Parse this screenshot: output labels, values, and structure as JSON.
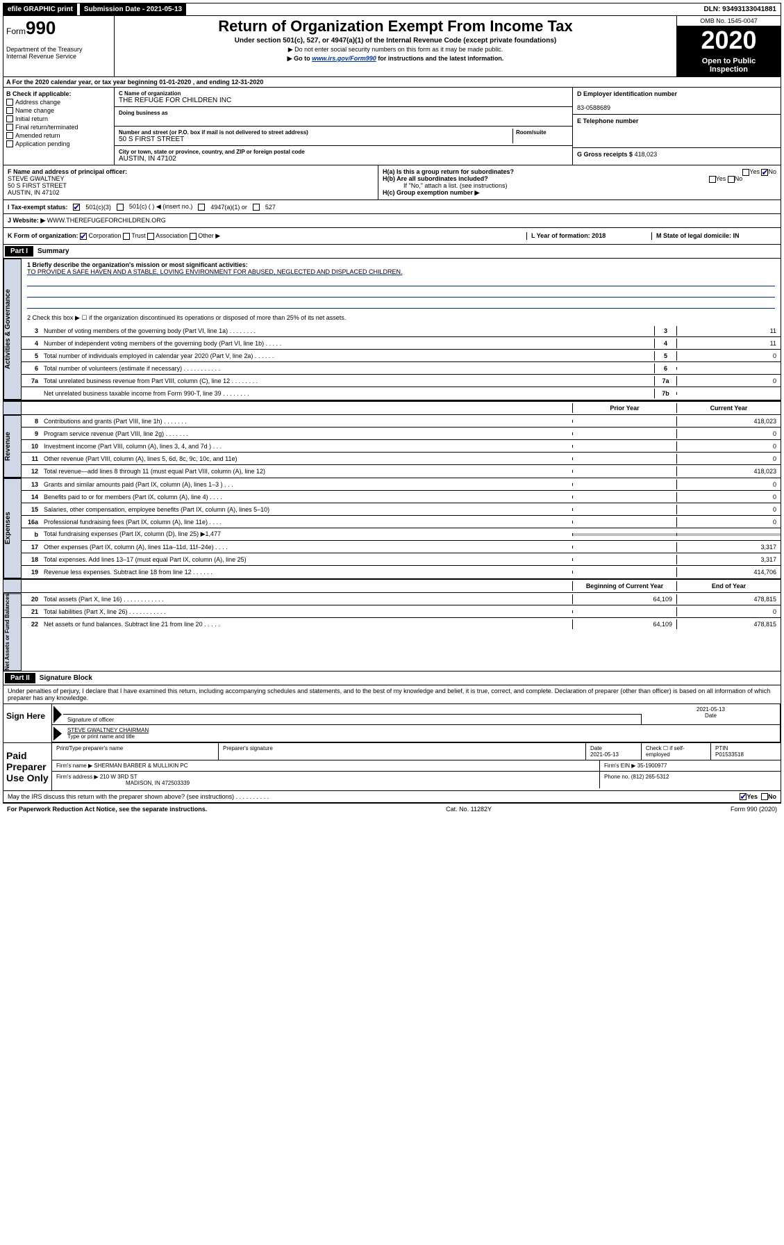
{
  "topbar": {
    "efile": "efile GRAPHIC print",
    "submission_label": "Submission Date - 2021-05-13",
    "dln": "DLN: 93493133041881"
  },
  "header": {
    "form_label": "Form",
    "form_number": "990",
    "dept": "Department of the Treasury\nInternal Revenue Service",
    "title": "Return of Organization Exempt From Income Tax",
    "subtitle": "Under section 501(c), 527, or 4947(a)(1) of the Internal Revenue Code (except private foundations)",
    "instr1": "▶ Do not enter social security numbers on this form as it may be made public.",
    "instr2_pre": "▶ Go to ",
    "instr2_link": "www.irs.gov/Form990",
    "instr2_post": " for instructions and the latest information.",
    "omb": "OMB No. 1545-0047",
    "year": "2020",
    "open": "Open to Public\nInspection"
  },
  "row_a": "A For the 2020 calendar year, or tax year beginning 01-01-2020    , and ending 12-31-2020",
  "box_b": {
    "label": "B Check if applicable:",
    "items": [
      "Address change",
      "Name change",
      "Initial return",
      "Final return/terminated",
      "Amended return",
      "Application pending"
    ]
  },
  "box_c": {
    "name_label": "C Name of organization",
    "name": "THE REFUGE FOR CHILDREN INC",
    "dba_label": "Doing business as",
    "addr_label": "Number and street (or P.O. box if mail is not delivered to street address)",
    "room_label": "Room/suite",
    "addr": "50 S FIRST STREET",
    "city_label": "City or town, state or province, country, and ZIP or foreign postal code",
    "city": "AUSTIN, IN  47102"
  },
  "box_d": {
    "label": "D Employer identification number",
    "val": "83-0588689"
  },
  "box_e": {
    "label": "E Telephone number",
    "val": ""
  },
  "box_g": {
    "label": "G Gross receipts $",
    "val": "418,023"
  },
  "box_f": {
    "label": "F  Name and address of principal officer:",
    "name": "STEVE GWALTNEY",
    "addr1": "50 S FIRST STREET",
    "addr2": "AUSTIN, IN  47102"
  },
  "box_h": {
    "ha": "H(a)  Is this a group return for subordinates?",
    "hb": "H(b)  Are all subordinates included?",
    "hb_note": "If \"No,\" attach a list. (see instructions)",
    "hc": "H(c)  Group exemption number ▶",
    "yes": "Yes",
    "no": "No"
  },
  "row_i": {
    "label": "I    Tax-exempt status:",
    "o1": "501(c)(3)",
    "o2": "501(c) (   ) ◀ (insert no.)",
    "o3": "4947(a)(1) or",
    "o4": "527"
  },
  "row_j": {
    "label": "J    Website: ▶  ",
    "val": "WWW.THEREFUGEFORCHILDREN.ORG"
  },
  "row_k": {
    "k": "K Form of organization:",
    "k1": "Corporation",
    "k2": "Trust",
    "k3": "Association",
    "k4": "Other ▶",
    "l": "L Year of formation: 2018",
    "m": "M State of legal domicile: IN"
  },
  "part1": {
    "hdr": "Part I",
    "title": "Summary"
  },
  "summary": {
    "q1": "1  Briefly describe the organization's mission or most significant activities:",
    "mission": "TO PROVIDE A SAFE HAVEN AND A STABLE, LOVING ENVIRONMENT FOR ABUSED, NEGLECTED AND DISPLACED CHILDREN.",
    "q2": "2   Check this box ▶ ☐  if the organization discontinued its operations or disposed of more than 25% of its net assets.",
    "lines": [
      {
        "n": "3",
        "d": "Number of voting members of the governing body (Part VI, line 1a)   .    .    .    .    .    .    .    .",
        "box": "3",
        "v": "11"
      },
      {
        "n": "4",
        "d": "Number of independent voting members of the governing body (Part VI, line 1b)  .    .    .    .    .",
        "box": "4",
        "v": "11"
      },
      {
        "n": "5",
        "d": "Total number of individuals employed in calendar year 2020 (Part V, line 2a)  .    .    .    .    .    .",
        "box": "5",
        "v": "0"
      },
      {
        "n": "6",
        "d": "Total number of volunteers (estimate if necessary)   .    .    .    .    .    .    .    .    .    .    .",
        "box": "6",
        "v": ""
      },
      {
        "n": "7a",
        "d": "Total unrelated business revenue from Part VIII, column (C), line 12  .    .    .    .    .    .    .    .",
        "box": "7a",
        "v": "0"
      },
      {
        "n": "",
        "d": "Net unrelated business taxable income from Form 990-T, line 39   .    .    .    .    .    .    .    .",
        "box": "7b",
        "v": ""
      }
    ]
  },
  "fin_hdr": {
    "prior": "Prior Year",
    "current": "Current Year"
  },
  "revenue": [
    {
      "n": "8",
      "d": "Contributions and grants (Part VIII, line 1h)   .    .    .    .    .    .    .",
      "p": "",
      "c": "418,023"
    },
    {
      "n": "9",
      "d": "Program service revenue (Part VIII, line 2g)   .    .    .    .    .    .    .",
      "p": "",
      "c": "0"
    },
    {
      "n": "10",
      "d": "Investment income (Part VIII, column (A), lines 3, 4, and 7d )   .    .    .",
      "p": "",
      "c": "0"
    },
    {
      "n": "11",
      "d": "Other revenue (Part VIII, column (A), lines 5, 6d, 8c, 9c, 10c, and 11e)",
      "p": "",
      "c": "0"
    },
    {
      "n": "12",
      "d": "Total revenue—add lines 8 through 11 (must equal Part VIII, column (A), line 12)",
      "p": "",
      "c": "418,023"
    }
  ],
  "expenses": [
    {
      "n": "13",
      "d": "Grants and similar amounts paid (Part IX, column (A), lines 1–3 )   .    .    .",
      "p": "",
      "c": "0"
    },
    {
      "n": "14",
      "d": "Benefits paid to or for members (Part IX, column (A), line 4)  .    .    .    .",
      "p": "",
      "c": "0"
    },
    {
      "n": "15",
      "d": "Salaries, other compensation, employee benefits (Part IX, column (A), lines 5–10)",
      "p": "",
      "c": "0"
    },
    {
      "n": "16a",
      "d": "Professional fundraising fees (Part IX, column (A), line 11e)   .    .    .    .",
      "p": "",
      "c": "0"
    },
    {
      "n": "b",
      "d": "Total fundraising expenses (Part IX, column (D), line 25) ▶1,477",
      "gray": true
    },
    {
      "n": "17",
      "d": "Other expenses (Part IX, column (A), lines 11a–11d, 11f–24e)  .    .    .    .",
      "p": "",
      "c": "3,317"
    },
    {
      "n": "18",
      "d": "Total expenses. Add lines 13–17 (must equal Part IX, column (A), line 25)",
      "p": "",
      "c": "3,317"
    },
    {
      "n": "19",
      "d": "Revenue less expenses. Subtract line 18 from line 12  .    .    .    .    .    .",
      "p": "",
      "c": "414,706"
    }
  ],
  "netassets_hdr": {
    "begin": "Beginning of Current Year",
    "end": "End of Year"
  },
  "netassets": [
    {
      "n": "20",
      "d": "Total assets (Part X, line 16)  .    .    .    .    .    .    .    .    .    .    .    .",
      "p": "64,109",
      "c": "478,815"
    },
    {
      "n": "21",
      "d": "Total liabilities (Part X, line 26)   .    .    .    .    .    .    .    .    .    .    .",
      "p": "",
      "c": "0"
    },
    {
      "n": "22",
      "d": "Net assets or fund balances. Subtract line 21 from line 20  .    .    .    .    .",
      "p": "64,109",
      "c": "478,815"
    }
  ],
  "part2": {
    "hdr": "Part II",
    "title": "Signature Block"
  },
  "perjury": "Under penalties of perjury, I declare that I have examined this return, including accompanying schedules and statements, and to the best of my knowledge and belief, it is true, correct, and complete. Declaration of preparer (other than officer) is based on all information of which preparer has any knowledge.",
  "sign": {
    "left": "Sign Here",
    "sig_of": "Signature of officer",
    "date": "2021-05-13",
    "date_lbl": "Date",
    "name": "STEVE GWALTNEY  CHAIRMAN",
    "name_lbl": "Type or print name and title"
  },
  "paid": {
    "left": "Paid Preparer Use Only",
    "h1": "Print/Type preparer's name",
    "h2": "Preparer's signature",
    "h3": "Date",
    "h3v": "2021-05-13",
    "h4": "Check ☐ if self-employed",
    "h5": "PTIN",
    "h5v": "P01533518",
    "firm_lbl": "Firm's name    ▶",
    "firm": "SHERMAN BARBER & MULLIKIN PC",
    "ein_lbl": "Firm's EIN ▶",
    "ein": "35-1900977",
    "addr_lbl": "Firm's address ▶",
    "addr1": "210 W 3RD ST",
    "addr2": "MADISON, IN  472503339",
    "phone_lbl": "Phone no.",
    "phone": "(812) 265-5312"
  },
  "discuss": "May the IRS discuss this return with the preparer shown above? (see instructions)   .    .    .    .    .    .    .    .    .    .",
  "footer": {
    "l": "For Paperwork Reduction Act Notice, see the separate instructions.",
    "c": "Cat. No. 11282Y",
    "r": "Form 990 (2020)"
  },
  "vlabels": {
    "gov": "Activities & Governance",
    "rev": "Revenue",
    "exp": "Expenses",
    "net": "Net Assets or Fund Balances"
  }
}
